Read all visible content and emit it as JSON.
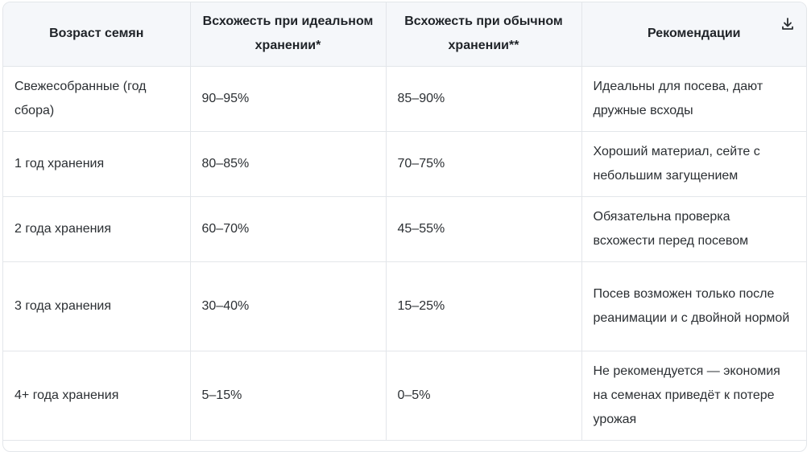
{
  "table": {
    "headers": [
      "Возраст семян",
      "Всхожесть при идеальном хранении*",
      "Всхожесть при обычном хранении**",
      "Рекомендации"
    ],
    "rows": [
      [
        "Свежесобранные (год сбора)",
        "90–95%",
        "85–90%",
        "Идеальны для посева, дают дружные всходы"
      ],
      [
        "1 год хранения",
        "80–85%",
        "70–75%",
        "Хороший материал, сейте с небольшим загущением"
      ],
      [
        "2 года хранения",
        "60–70%",
        "45–55%",
        "Обязательна проверка всхожести перед посевом"
      ],
      [
        "3 года хранения",
        "30–40%",
        "15–25%",
        "Посев возможен только после реанимации и с двойной нормой"
      ],
      [
        "4+ года хранения",
        "5–15%",
        "0–5%",
        "Не рекомендуется — экономия на семенах приведёт к потере урожая"
      ]
    ]
  },
  "icons": {
    "download": "download-icon"
  },
  "colors": {
    "header_bg": "#f5f7fa",
    "border": "#e3e6ea",
    "text": "#1f2328"
  }
}
